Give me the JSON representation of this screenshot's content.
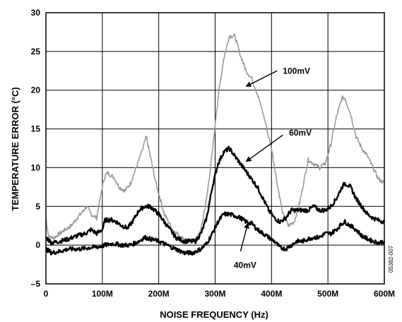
{
  "chart_data": {
    "type": "line",
    "xlabel": "NOISE FREQUENCY (Hz)",
    "ylabel": "TEMPERATURE ERROR (°C)",
    "xlim": [
      0,
      600
    ],
    "ylim": [
      -5,
      30
    ],
    "x_ticks": [
      0,
      100,
      200,
      300,
      400,
      500,
      600
    ],
    "x_tick_labels": [
      "0",
      "100M",
      "200M",
      "300M",
      "400M",
      "500M",
      "600M"
    ],
    "y_ticks": [
      -5,
      0,
      5,
      10,
      15,
      20,
      25,
      30
    ],
    "y_tick_labels": [
      "–5",
      "0",
      "5",
      "10",
      "15",
      "20",
      "25",
      "30"
    ],
    "grid": true,
    "annotations": [
      "100mV",
      "60mV",
      "40mV"
    ],
    "figure_code": "05382-007",
    "series": [
      {
        "name": "100mV",
        "color": "#9a9a9a",
        "x": [
          0,
          5,
          15,
          30,
          45,
          55,
          65,
          72,
          80,
          90,
          100,
          105,
          110,
          120,
          130,
          140,
          150,
          160,
          170,
          178,
          185,
          195,
          210,
          225,
          240,
          255,
          265,
          275,
          285,
          295,
          305,
          315,
          325,
          335,
          345,
          355,
          365,
          375,
          385,
          400,
          410,
          420,
          430,
          440,
          450,
          458,
          465,
          475,
          485,
          495,
          505,
          515,
          525,
          530,
          540,
          550,
          560,
          570,
          580,
          590,
          600
        ],
        "y": [
          3.5,
          1,
          1,
          1.8,
          2.5,
          3.5,
          4.3,
          5,
          4,
          3.5,
          7.5,
          9,
          9.3,
          8.8,
          7.5,
          7,
          8,
          10,
          12,
          14,
          11.5,
          8,
          4,
          2,
          1,
          0.5,
          0.5,
          2,
          6,
          12,
          19,
          24,
          27,
          27,
          24.5,
          22.5,
          21.5,
          19.5,
          17,
          12.5,
          8,
          4,
          2.5,
          3,
          5.5,
          8.5,
          11,
          10.5,
          10,
          10.5,
          13,
          16.5,
          19,
          19,
          17,
          14,
          12.5,
          11.5,
          10,
          8.5,
          8
        ]
      },
      {
        "name": "60mV",
        "color": "#000000",
        "x": [
          0,
          10,
          25,
          40,
          55,
          70,
          80,
          90,
          100,
          105,
          115,
          125,
          135,
          145,
          155,
          165,
          175,
          185,
          200,
          215,
          230,
          245,
          255,
          265,
          275,
          285,
          295,
          305,
          315,
          325,
          335,
          345,
          355,
          365,
          375,
          385,
          395,
          405,
          415,
          425,
          435,
          445,
          455,
          465,
          475,
          485,
          495,
          505,
          515,
          525,
          530,
          540,
          550,
          560,
          570,
          580,
          590,
          600
        ],
        "y": [
          1,
          0.3,
          0.5,
          0.8,
          1.2,
          1.5,
          2,
          1.5,
          2,
          3.2,
          3.3,
          3,
          2.5,
          2.2,
          3.2,
          4.5,
          5,
          5,
          4,
          2.5,
          1,
          0.5,
          0.5,
          0.5,
          1.5,
          3.5,
          7.5,
          10.5,
          12,
          12.5,
          11.5,
          10.5,
          9.5,
          8.5,
          7.5,
          6,
          4.5,
          3.5,
          3,
          3.5,
          4.5,
          4.5,
          4.5,
          4.5,
          5,
          4.5,
          4.5,
          5,
          6,
          7.5,
          8,
          7.5,
          6,
          5,
          4,
          3.5,
          3.2,
          3
        ]
      },
      {
        "name": "40mV",
        "color": "#000000",
        "x": [
          0,
          10,
          25,
          40,
          60,
          80,
          95,
          105,
          120,
          135,
          150,
          165,
          175,
          185,
          200,
          215,
          230,
          245,
          260,
          275,
          285,
          295,
          305,
          315,
          325,
          335,
          345,
          355,
          365,
          375,
          385,
          395,
          405,
          415,
          425,
          435,
          445,
          455,
          465,
          475,
          485,
          495,
          505,
          515,
          525,
          530,
          540,
          550,
          560,
          570,
          580,
          590,
          600
        ],
        "y": [
          -0.5,
          -1,
          -0.8,
          -0.5,
          -0.5,
          -0.3,
          -0.2,
          0,
          0.2,
          0,
          0,
          0.5,
          1,
          0.8,
          0.5,
          0,
          -0.5,
          -1,
          -1,
          -0.5,
          0.2,
          1.5,
          3,
          4,
          4,
          3.8,
          3.5,
          3,
          2.8,
          2,
          1.5,
          1,
          0.5,
          -0.3,
          -0.5,
          0,
          0.5,
          0.5,
          0.8,
          1,
          1,
          1.5,
          1.5,
          2,
          2.8,
          3,
          2.5,
          2,
          1.2,
          0.8,
          0.5,
          0.3,
          0.5
        ]
      }
    ]
  }
}
